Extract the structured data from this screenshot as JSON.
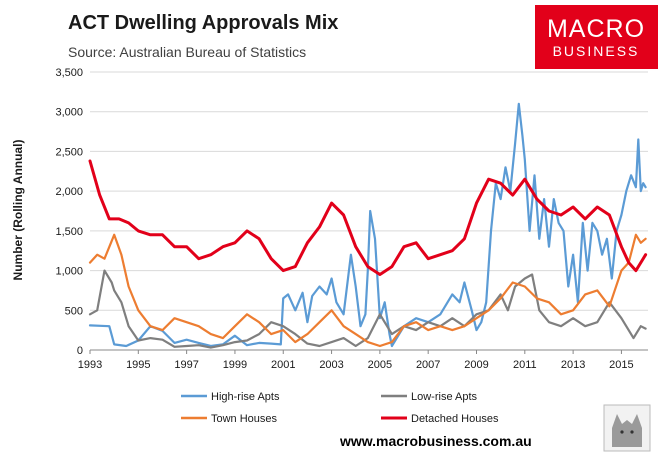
{
  "colors": {
    "high_rise": "#5b9bd5",
    "low_rise": "#7f7f7f",
    "town_houses": "#ed7d31",
    "detached": "#e2001a",
    "grid": "#d9d9d9",
    "axis": "#888888",
    "brand_bg": "#e2001a"
  },
  "brand": {
    "line1": "MACRO",
    "line2": "BUSINESS"
  },
  "footer": {
    "url": "www.macrobusiness.com.au"
  },
  "chart_data": {
    "type": "line",
    "title": "ACT Dwelling Approvals Mix",
    "subtitle": "Source: Australian Bureau of Statistics",
    "xlabel": "",
    "ylabel": "Number (Rolling Annual)",
    "xlim": [
      1993,
      2016.1
    ],
    "ylim": [
      0,
      3500
    ],
    "y_ticks": [
      0,
      500,
      1000,
      1500,
      2000,
      2500,
      3000,
      3500
    ],
    "y_tick_labels": [
      "0",
      "500",
      "1,000",
      "1,500",
      "2,000",
      "2,500",
      "3,000",
      "3,500"
    ],
    "x_ticks": [
      1993,
      1995,
      1997,
      1999,
      2001,
      2003,
      2005,
      2007,
      2009,
      2011,
      2013,
      2015
    ],
    "x_tick_labels": [
      "1993",
      "1995",
      "1997",
      "1999",
      "2001",
      "2003",
      "2005",
      "2007",
      "2009",
      "2011",
      "2013",
      "2015"
    ],
    "grid": true,
    "legend_position": "bottom",
    "series": [
      {
        "name": "High-rise Apts",
        "key": "high_rise",
        "x": [
          1993,
          1993.8,
          1994,
          1994.5,
          1995,
          1995.5,
          1996,
          1996.5,
          1997,
          1997.5,
          1998,
          1998.5,
          1999,
          1999.5,
          2000,
          2000.5,
          2000.9,
          2001,
          2001.2,
          2001.5,
          2001.8,
          2002,
          2002.2,
          2002.5,
          2002.8,
          2003,
          2003.2,
          2003.5,
          2003.8,
          2004,
          2004.2,
          2004.4,
          2004.5,
          2004.6,
          2004.8,
          2005,
          2005.2,
          2005.4,
          2005.5,
          2005.8,
          2006,
          2006.5,
          2007,
          2007.5,
          2008,
          2008.3,
          2008.5,
          2008.8,
          2009,
          2009.2,
          2009.4,
          2009.6,
          2009.8,
          2010,
          2010.2,
          2010.4,
          2010.6,
          2010.75,
          2010.9,
          2011,
          2011.2,
          2011.4,
          2011.6,
          2011.8,
          2012,
          2012.2,
          2012.4,
          2012.6,
          2012.8,
          2013,
          2013.2,
          2013.4,
          2013.6,
          2013.8,
          2014,
          2014.2,
          2014.4,
          2014.6,
          2014.8,
          2015,
          2015.2,
          2015.4,
          2015.6,
          2015.7,
          2015.8,
          2015.9,
          2016
        ],
        "y": [
          310,
          300,
          70,
          50,
          120,
          300,
          240,
          90,
          130,
          90,
          50,
          70,
          180,
          60,
          90,
          80,
          70,
          650,
          700,
          500,
          720,
          350,
          680,
          800,
          700,
          900,
          600,
          450,
          1200,
          800,
          300,
          450,
          1000,
          1750,
          1400,
          400,
          600,
          200,
          50,
          200,
          300,
          400,
          350,
          450,
          700,
          600,
          850,
          500,
          250,
          350,
          600,
          1500,
          2100,
          1900,
          2300,
          2000,
          2600,
          3100,
          2700,
          2400,
          1500,
          2200,
          1400,
          1900,
          1300,
          1900,
          1600,
          1500,
          800,
          1200,
          600,
          1600,
          1000,
          1600,
          1500,
          1200,
          1400,
          900,
          1500,
          1700,
          2000,
          2200,
          2050,
          2650,
          2000,
          2100,
          2050
        ]
      },
      {
        "name": "Low-rise Apts",
        "key": "low_rise",
        "x": [
          1993,
          1993.3,
          1993.6,
          1993.9,
          1994,
          1994.3,
          1994.6,
          1995,
          1995.5,
          1996,
          1996.5,
          1997,
          1997.5,
          1998,
          1998.5,
          1999,
          1999.5,
          2000,
          2000.5,
          2001,
          2001.5,
          2002,
          2002.5,
          2003,
          2003.5,
          2004,
          2004.5,
          2005,
          2005.5,
          2006,
          2006.5,
          2007,
          2007.5,
          2008,
          2008.5,
          2009,
          2009.5,
          2010,
          2010.3,
          2010.6,
          2011,
          2011.3,
          2011.6,
          2012,
          2012.5,
          2013,
          2013.5,
          2014,
          2014.5,
          2015,
          2015.5,
          2015.8,
          2016
        ],
        "y": [
          450,
          500,
          1000,
          850,
          750,
          600,
          300,
          120,
          150,
          130,
          40,
          50,
          60,
          30,
          60,
          100,
          120,
          200,
          350,
          300,
          200,
          80,
          50,
          100,
          150,
          50,
          150,
          450,
          200,
          300,
          250,
          350,
          300,
          400,
          300,
          450,
          500,
          700,
          500,
          800,
          900,
          950,
          500,
          350,
          300,
          400,
          300,
          350,
          600,
          400,
          150,
          300,
          270
        ]
      },
      {
        "name": "Town Houses",
        "key": "town_houses",
        "x": [
          1993,
          1993.3,
          1993.6,
          1994,
          1994.3,
          1994.6,
          1995,
          1995.5,
          1996,
          1996.5,
          1997,
          1997.5,
          1998,
          1998.5,
          1999,
          1999.5,
          2000,
          2000.5,
          2001,
          2001.5,
          2002,
          2002.5,
          2003,
          2003.5,
          2004,
          2004.5,
          2005,
          2005.5,
          2006,
          2006.5,
          2007,
          2007.5,
          2008,
          2008.5,
          2009,
          2009.5,
          2010,
          2010.5,
          2011,
          2011.5,
          2012,
          2012.5,
          2013,
          2013.5,
          2014,
          2014.5,
          2015,
          2015.3,
          2015.6,
          2015.8,
          2016
        ],
        "y": [
          1100,
          1200,
          1150,
          1450,
          1200,
          800,
          500,
          300,
          250,
          400,
          350,
          300,
          200,
          150,
          300,
          450,
          350,
          200,
          250,
          100,
          200,
          350,
          500,
          300,
          200,
          100,
          50,
          100,
          300,
          350,
          250,
          300,
          250,
          300,
          400,
          500,
          650,
          850,
          800,
          650,
          600,
          450,
          500,
          700,
          750,
          550,
          1000,
          1100,
          1450,
          1350,
          1400
        ]
      },
      {
        "name": "Detached Houses",
        "key": "detached",
        "x": [
          1993,
          1993.4,
          1993.8,
          1994.2,
          1994.6,
          1995,
          1995.5,
          1996,
          1996.5,
          1997,
          1997.5,
          1998,
          1998.5,
          1999,
          1999.5,
          2000,
          2000.5,
          2001,
          2001.5,
          2002,
          2002.5,
          2003,
          2003.5,
          2004,
          2004.5,
          2005,
          2005.5,
          2006,
          2006.5,
          2007,
          2007.5,
          2008,
          2008.5,
          2009,
          2009.5,
          2010,
          2010.5,
          2011,
          2011.5,
          2012,
          2012.5,
          2013,
          2013.5,
          2014,
          2014.5,
          2015,
          2015.3,
          2015.6,
          2015.8,
          2016
        ],
        "y": [
          2380,
          1950,
          1650,
          1650,
          1600,
          1500,
          1450,
          1450,
          1300,
          1300,
          1150,
          1200,
          1300,
          1350,
          1500,
          1400,
          1150,
          1000,
          1050,
          1350,
          1550,
          1850,
          1700,
          1300,
          1050,
          950,
          1050,
          1300,
          1350,
          1150,
          1200,
          1250,
          1400,
          1850,
          2150,
          2100,
          1950,
          2150,
          1900,
          1750,
          1700,
          1800,
          1650,
          1800,
          1700,
          1300,
          1100,
          1000,
          1100,
          1200
        ]
      }
    ]
  }
}
